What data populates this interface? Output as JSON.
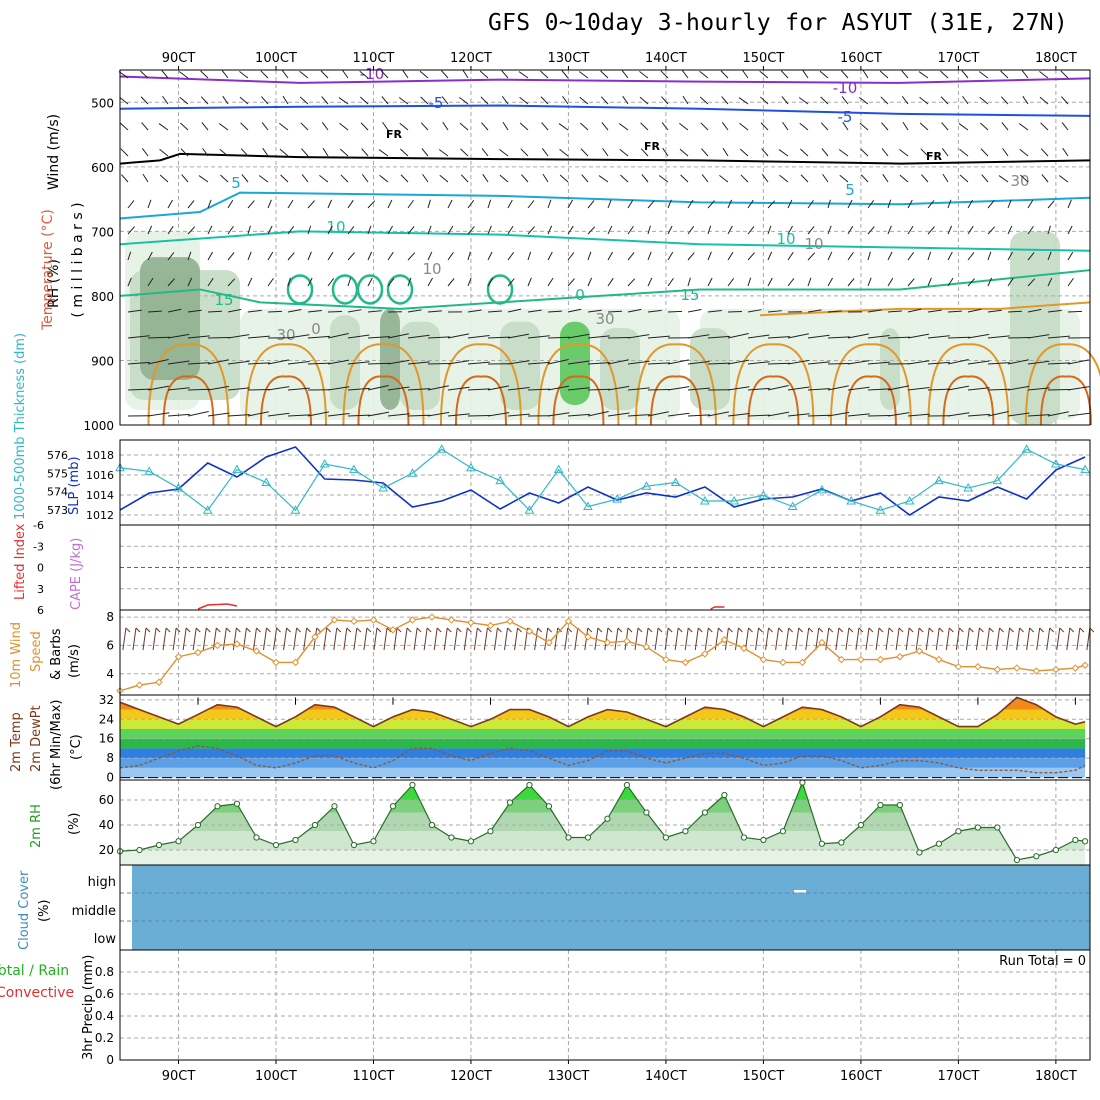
{
  "title": "GFS 0~10day 3-hourly for ASYUT (31E, 27N)",
  "time_labels": [
    "90CT",
    "100CT",
    "110CT",
    "120CT",
    "130CT",
    "140CT",
    "150CT",
    "160CT",
    "170CT",
    "180CT"
  ],
  "colors": {
    "rh_light": "#e6f2e6",
    "rh_mid": "#c4dcc4",
    "rh_dark": "#8fb08f",
    "rh_bright": "#5cc75c",
    "t_purple": "#8a2ec9",
    "t_blue": "#2050e0",
    "t_black": "#000000",
    "t_cyan": "#1aa6d8",
    "t_teal": "#18c0a8",
    "t_green": "#22b888",
    "t_orange": "#e0982a",
    "t_dorange": "#d46a1a",
    "t_magenta": "#d0208a",
    "slp": "#1030c8",
    "thick": "#30b8c8",
    "cape": "#c070d0",
    "li": "#e03030",
    "wind10": "#e09030",
    "temp2m": "#7a3a1a",
    "rh2m": "#20a020",
    "cloud": "#6aaed6"
  },
  "panels": {
    "upper": {
      "ylabel_wind": "Wind (m/s)",
      "ylabel_temp": "Temperature (°C)",
      "ylabel_rh": "RH (%)",
      "ylabel_mb": "( m i l l i b a r s )",
      "ticks": [
        "500",
        "600",
        "700",
        "800",
        "900",
        "1000"
      ],
      "contour_labels": [
        "-10",
        "-10",
        "-5",
        "-5",
        "FR",
        "FR",
        "FR",
        "5",
        "5",
        "10",
        "10",
        "15",
        "15",
        "30",
        "30",
        "10",
        "10",
        "30",
        "0",
        "0"
      ]
    },
    "slp": {
      "ylabel_left": "1000-500mb Thickness (dm)",
      "ylabel_right": "SLP (mb)",
      "thick_ticks": [
        "576",
        "575",
        "574",
        "573"
      ],
      "slp_ticks": [
        "1018",
        "1016",
        "1014",
        "1012"
      ]
    },
    "cape": {
      "ylabel_left": "Lifted Index",
      "ylabel_right": "CAPE (J/kg)",
      "ticks": [
        "-6",
        "-3",
        "0",
        "3",
        "6"
      ]
    },
    "wind10": {
      "ylabel_1": "10m Wind",
      "ylabel_2": "Speed",
      "ylabel_3": "& Barbs",
      "ylabel_unit": "(m/s)",
      "ticks": [
        "8",
        "6",
        "4"
      ]
    },
    "temp2m": {
      "ylabel_1": "2m Temp",
      "ylabel_2": "2m DewPt",
      "ylabel_3": "(6hr Min/Max)",
      "ylabel_unit": "(°C)",
      "ticks": [
        "32",
        "24",
        "16",
        "8",
        "0"
      ]
    },
    "rh2m": {
      "ylabel": "2m RH",
      "ylabel_unit": "(%)",
      "ticks": [
        "60",
        "40",
        "20"
      ]
    },
    "cloud": {
      "ylabel": "Cloud Cover",
      "ylabel_unit": "(%)",
      "levels": [
        "high",
        "middle",
        "low"
      ]
    },
    "precip": {
      "ylabel_1": "Total / Rain",
      "ylabel_2": "Convective",
      "ylabel_3": "3hr Precip (mm)",
      "run_total": "Run Total = 0",
      "ticks": [
        "0.8",
        "0.6",
        "0.4",
        "0.2",
        "0"
      ]
    }
  },
  "chart_data": [
    {
      "type": "line",
      "title": "SLP (mb)",
      "x": [
        84,
        87,
        90,
        93,
        96,
        99,
        102,
        105,
        108,
        111,
        114,
        117,
        120,
        123,
        126,
        129,
        132,
        135,
        138,
        141,
        144,
        147,
        150,
        153,
        156,
        159,
        162,
        165,
        168,
        171,
        174,
        177,
        180,
        183
      ],
      "series": [
        {
          "name": "SLP (mb)",
          "values": [
            1012.5,
            1014.2,
            1014.6,
            1017.2,
            1015.8,
            1017.8,
            1018.8,
            1015.6,
            1015.5,
            1015.2,
            1012.8,
            1013.4,
            1014.5,
            1012.6,
            1014.2,
            1013.2,
            1014.8,
            1013.5,
            1014.2,
            1013.8,
            1014.8,
            1012.8,
            1013.6,
            1013.8,
            1014.6,
            1013.4,
            1014.2,
            1012.0,
            1013.8,
            1013.4,
            1014.8,
            1013.6,
            1016.5,
            1017.8
          ]
        },
        {
          "name": "1000-500mb Thickness (dm)",
          "values": [
            575.3,
            575.1,
            574.2,
            573.0,
            575.2,
            574.5,
            573.0,
            575.5,
            575.2,
            574.2,
            575.0,
            576.3,
            575.3,
            574.6,
            573.0,
            575.2,
            573.2,
            573.6,
            574.3,
            574.5,
            573.5,
            573.5,
            573.8,
            573.2,
            574.1,
            573.5,
            573.0,
            573.5,
            574.6,
            574.2,
            574.6,
            576.3,
            575.5,
            575.2
          ]
        }
      ],
      "ylim": [
        1011,
        1019.5
      ]
    },
    {
      "type": "line",
      "title": "10m Wind Speed (m/s)",
      "x": [
        84,
        86,
        88,
        90,
        92,
        94,
        96,
        98,
        100,
        102,
        104,
        106,
        108,
        110,
        112,
        114,
        116,
        118,
        120,
        122,
        124,
        126,
        128,
        130,
        132,
        134,
        136,
        138,
        140,
        142,
        144,
        146,
        148,
        150,
        152,
        154,
        156,
        158,
        160,
        162,
        164,
        166,
        168,
        170,
        172,
        174,
        176,
        178,
        180,
        182,
        183
      ],
      "series": [
        {
          "name": "10m Wind Speed",
          "values": [
            2.8,
            3.2,
            3.4,
            5.2,
            5.5,
            6.0,
            6.1,
            5.6,
            4.8,
            4.8,
            6.6,
            7.8,
            7.7,
            7.8,
            7.1,
            7.8,
            8.0,
            7.8,
            7.6,
            7.4,
            7.7,
            7.0,
            6.2,
            7.7,
            6.6,
            6.2,
            6.3,
            5.9,
            5.0,
            4.8,
            5.4,
            6.4,
            5.8,
            5.0,
            4.8,
            4.8,
            6.2,
            5.0,
            5.0,
            5.0,
            5.2,
            5.6,
            5.0,
            4.5,
            4.5,
            4.3,
            4.4,
            4.2,
            4.3,
            4.4,
            4.6
          ]
        }
      ],
      "ylim": [
        2.5,
        8.5
      ]
    },
    {
      "type": "area",
      "title": "2m Temp (°C)",
      "x": [
        84,
        86,
        88,
        90,
        92,
        94,
        96,
        98,
        100,
        102,
        104,
        106,
        108,
        110,
        112,
        114,
        116,
        118,
        120,
        122,
        124,
        126,
        128,
        130,
        132,
        134,
        136,
        138,
        140,
        142,
        144,
        146,
        148,
        150,
        152,
        154,
        156,
        158,
        160,
        162,
        164,
        166,
        168,
        170,
        172,
        174,
        176,
        178,
        180,
        182,
        183
      ],
      "series": [
        {
          "name": "2m Temp",
          "values": [
            31,
            28,
            25,
            22,
            26,
            30,
            29,
            25,
            21,
            25,
            30,
            29,
            25,
            21,
            25,
            28,
            27,
            24,
            21,
            24,
            28,
            28,
            25,
            21,
            25,
            28,
            27,
            24,
            21,
            25,
            29,
            28,
            25,
            21,
            25,
            29,
            28,
            25,
            21,
            25,
            30,
            29,
            25,
            21,
            21,
            26,
            33,
            30,
            25,
            22,
            23
          ]
        },
        {
          "name": "2m DewPt",
          "values": [
            4,
            5,
            8,
            11,
            13,
            12,
            9,
            5,
            4,
            6,
            9,
            9,
            6,
            4,
            7,
            12,
            12,
            9,
            7,
            10,
            12,
            11,
            8,
            5,
            7,
            11,
            11,
            8,
            6,
            8,
            10,
            10,
            8,
            5,
            6,
            9,
            9,
            7,
            4,
            5,
            7,
            7,
            6,
            4,
            3,
            3,
            3,
            2,
            2,
            3,
            5
          ]
        }
      ],
      "ylim": [
        -1,
        34
      ]
    },
    {
      "type": "area",
      "title": "2m RH (%)",
      "x": [
        84,
        86,
        88,
        90,
        92,
        94,
        96,
        98,
        100,
        102,
        104,
        106,
        108,
        110,
        112,
        114,
        116,
        118,
        120,
        122,
        124,
        126,
        128,
        130,
        132,
        134,
        136,
        138,
        140,
        142,
        144,
        146,
        148,
        150,
        152,
        154,
        156,
        158,
        160,
        162,
        164,
        166,
        168,
        170,
        172,
        174,
        176,
        178,
        180,
        182,
        183
      ],
      "series": [
        {
          "name": "2m RH",
          "values": [
            19,
            20,
            24,
            27,
            40,
            55,
            57,
            30,
            24,
            28,
            40,
            55,
            24,
            27,
            55,
            72,
            40,
            30,
            27,
            35,
            58,
            72,
            55,
            30,
            30,
            45,
            72,
            50,
            30,
            35,
            50,
            64,
            30,
            28,
            35,
            74,
            25,
            26,
            40,
            56,
            56,
            18,
            25,
            35,
            38,
            38,
            12,
            15,
            20,
            28,
            27
          ]
        }
      ],
      "ylim": [
        8,
        76
      ]
    },
    {
      "type": "bar",
      "title": "3hr Precip (mm)",
      "categories": [
        "run"
      ],
      "values": [
        0
      ],
      "ylim": [
        0,
        1
      ]
    }
  ]
}
